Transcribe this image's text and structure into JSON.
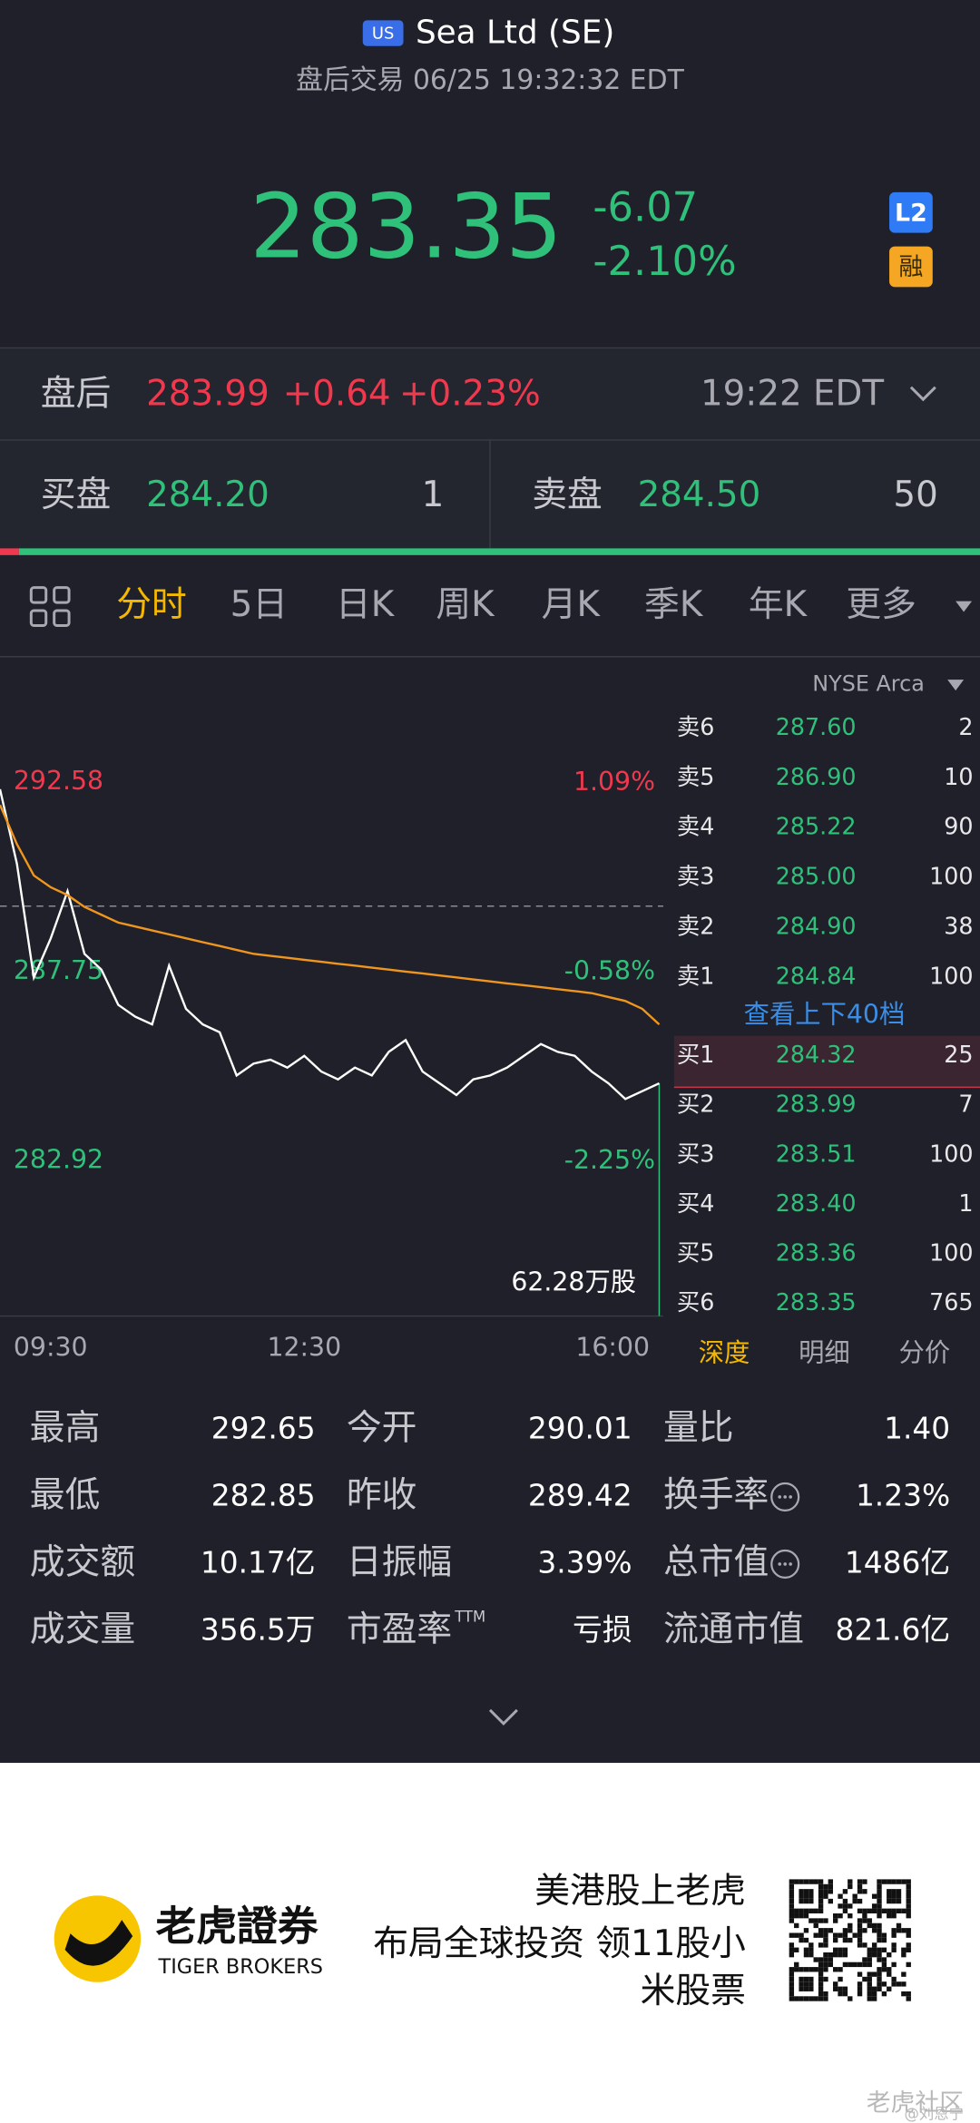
{
  "header": {
    "badge": "US",
    "title": "Sea Ltd (SE)",
    "subtitle": "盘后交易 06/25 19:32:32 EDT"
  },
  "quote": {
    "price": "283.35",
    "change": "-6.07",
    "change_pct": "-2.10%",
    "badge_l2": "L2",
    "badge_margin": "融"
  },
  "after_hours": {
    "label": "盘后",
    "price": "283.99",
    "change": "+0.64",
    "change_pct": "+0.23%",
    "time": "19:22 EDT"
  },
  "bid": {
    "label": "买盘",
    "price": "284.20",
    "size": "1"
  },
  "ask": {
    "label": "卖盘",
    "price": "284.50",
    "size": "50"
  },
  "tabs": [
    "分时",
    "5日",
    "日K",
    "周K",
    "月K",
    "季K",
    "年K",
    "更多"
  ],
  "chart_data": {
    "type": "line",
    "x": [
      "09:30",
      null,
      null,
      null,
      null,
      null,
      null,
      null,
      null,
      null,
      null,
      null,
      null,
      null,
      null,
      null,
      null,
      null,
      "12:30",
      null,
      null,
      null,
      null,
      null,
      null,
      null,
      null,
      null,
      null,
      null,
      null,
      null,
      null,
      null,
      null,
      null,
      null,
      null,
      null,
      "16:00"
    ],
    "series": [
      {
        "name": "price",
        "color": "#ffffff",
        "values": [
          292.4,
          290.5,
          287.6,
          288.6,
          289.8,
          288.2,
          287.8,
          286.9,
          286.6,
          286.4,
          287.9,
          286.8,
          286.4,
          286.2,
          285.1,
          285.4,
          285.5,
          285.3,
          285.6,
          285.2,
          285.0,
          285.3,
          285.1,
          285.7,
          286.0,
          285.2,
          284.9,
          284.6,
          285.0,
          285.1,
          285.3,
          285.6,
          285.9,
          285.7,
          285.6,
          285.2,
          284.9,
          284.5,
          284.7,
          284.9
        ]
      },
      {
        "name": "average",
        "color": "#f0961e",
        "values": [
          292.0,
          291.0,
          290.2,
          289.9,
          289.7,
          289.4,
          289.2,
          289.0,
          288.9,
          288.8,
          288.7,
          288.6,
          288.5,
          288.4,
          288.3,
          288.2,
          288.15,
          288.1,
          288.05,
          288.0,
          287.95,
          287.9,
          287.85,
          287.8,
          287.75,
          287.7,
          287.65,
          287.6,
          287.55,
          287.5,
          287.45,
          287.4,
          287.35,
          287.3,
          287.25,
          287.2,
          287.1,
          287.0,
          286.8,
          286.4
        ]
      }
    ],
    "ylim": [
      282.45,
      293.4
    ],
    "yticks": [
      292.58,
      287.75,
      282.92
    ],
    "y2lim": [
      -2.41,
      1.38
    ],
    "y2ticks": [
      {
        "value": 1.09,
        "label": "1.09%"
      },
      {
        "value": -0.58,
        "label": "-0.58%"
      },
      {
        "value": -2.25,
        "label": "-2.25%"
      }
    ],
    "prev_close": 289.42,
    "volume_label": "62.28万股"
  },
  "orderbook": {
    "venue": "NYSE Arca",
    "asks": [
      {
        "label": "卖6",
        "price": "287.60",
        "size": "2"
      },
      {
        "label": "卖5",
        "price": "286.90",
        "size": "10"
      },
      {
        "label": "卖4",
        "price": "285.22",
        "size": "90"
      },
      {
        "label": "卖3",
        "price": "285.00",
        "size": "100"
      },
      {
        "label": "卖2",
        "price": "284.90",
        "size": "38"
      },
      {
        "label": "卖1",
        "price": "284.84",
        "size": "100"
      }
    ],
    "more": "查看上下40档",
    "bids": [
      {
        "label": "买1",
        "price": "284.32",
        "size": "25"
      },
      {
        "label": "买2",
        "price": "283.99",
        "size": "7"
      },
      {
        "label": "买3",
        "price": "283.51",
        "size": "100"
      },
      {
        "label": "买4",
        "price": "283.40",
        "size": "1"
      },
      {
        "label": "买5",
        "price": "283.36",
        "size": "100"
      },
      {
        "label": "买6",
        "price": "283.35",
        "size": "765"
      }
    ],
    "tabs": [
      "深度",
      "明细",
      "分价"
    ]
  },
  "stats": [
    [
      {
        "label": "最高",
        "value": "292.65"
      },
      {
        "label": "今开",
        "value": "290.01"
      },
      {
        "label": "量比",
        "value": "1.40"
      }
    ],
    [
      {
        "label": "最低",
        "value": "282.85"
      },
      {
        "label": "昨收",
        "value": "289.42"
      },
      {
        "label": "换手率",
        "value": "1.23%"
      }
    ],
    [
      {
        "label": "成交额",
        "value": "10.17亿"
      },
      {
        "label": "日振幅",
        "value": "3.39%"
      },
      {
        "label": "总市值",
        "value": "1486亿"
      }
    ],
    [
      {
        "label": "成交量",
        "value": "356.5万"
      },
      {
        "label": "市盈率",
        "sup": "TTM",
        "value": "亏损"
      },
      {
        "label": "流通市值",
        "value": "821.6亿"
      }
    ]
  ],
  "footer": {
    "brand": "老虎證券",
    "brand_en": "TIGER BROKERS",
    "slogan": [
      "美港股上老虎",
      "布局全球投资 领11股小",
      "米股票"
    ],
    "watermark": "老虎社区",
    "author": "@刘恩宁"
  }
}
